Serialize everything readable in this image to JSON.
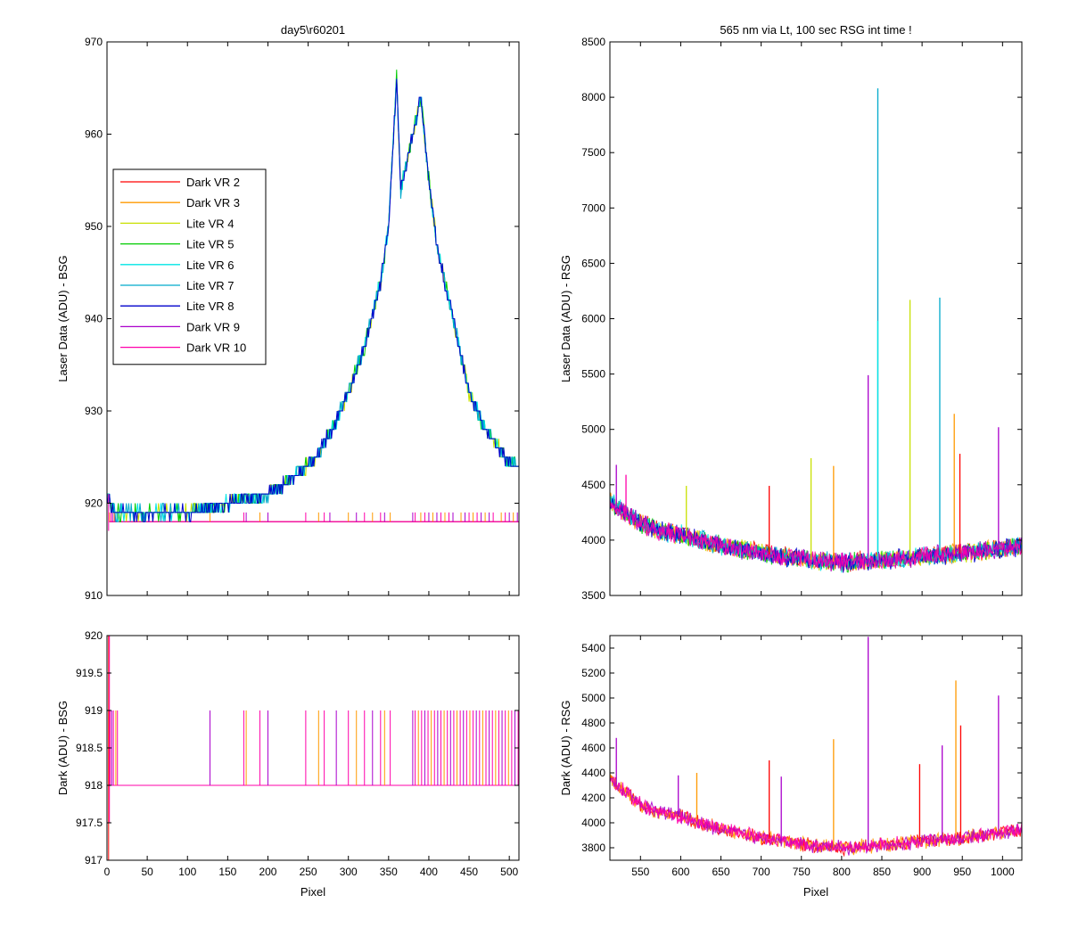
{
  "figure": {
    "background": "#ffffff"
  },
  "chart_data": [
    {
      "id": "top-left",
      "type": "line",
      "title": "day5\\r60201",
      "xlabel": "",
      "ylabel": "Laser Data (ADU) - BSG",
      "xlim": [
        0,
        512
      ],
      "ylim": [
        910,
        970
      ],
      "xticks": [
        0,
        50,
        100,
        150,
        200,
        250,
        300,
        350,
        400,
        450,
        500
      ],
      "xticklabels": [],
      "yticks": [
        910,
        920,
        930,
        940,
        950,
        960,
        970
      ],
      "yticklabels": [
        "910",
        "920",
        "930",
        "940",
        "950",
        "960",
        "970"
      ],
      "grid": false,
      "legend": {
        "position": "left-middle",
        "entries": [
          {
            "name": "Dark VR 2",
            "color": "#ff0000"
          },
          {
            "name": "Dark VR 3",
            "color": "#ff9900"
          },
          {
            "name": "Lite VR 4",
            "color": "#c8e000"
          },
          {
            "name": "Lite VR 5",
            "color": "#00cc00"
          },
          {
            "name": "Lite VR 6",
            "color": "#00e5e5"
          },
          {
            "name": "Lite VR 7",
            "color": "#00aacc"
          },
          {
            "name": "Lite VR 8",
            "color": "#0000cc"
          },
          {
            "name": "Dark VR 9",
            "color": "#aa00cc"
          },
          {
            "name": "Dark VR 10",
            "color": "#ff00aa"
          }
        ]
      },
      "series": [
        {
          "name": "Lite VR 8",
          "color": "#0000cc",
          "kind": "lite",
          "x": [
            0,
            10,
            20,
            50,
            100,
            150,
            180,
            200,
            220,
            240,
            260,
            280,
            300,
            320,
            340,
            350,
            355,
            360,
            365,
            370,
            380,
            385,
            390,
            400,
            410,
            420,
            430,
            440,
            450,
            460,
            470,
            480,
            490,
            500,
            510
          ],
          "y": [
            921,
            919,
            919,
            919,
            919,
            920,
            920.5,
            921,
            922,
            923.5,
            925,
            928,
            932,
            937,
            944,
            950,
            958,
            966,
            954,
            956,
            960,
            962,
            964,
            955,
            948,
            944,
            940,
            936,
            932,
            930,
            928,
            927,
            925.5,
            924.5,
            924
          ]
        },
        {
          "name": "Dark VR 10",
          "color": "#ff00aa",
          "kind": "dark",
          "baseline": 918
        }
      ],
      "dark_spike_pixels": [
        3,
        5,
        7,
        9,
        10,
        13,
        128,
        170,
        173,
        190,
        200,
        247,
        263,
        270,
        277,
        300,
        310,
        320,
        330,
        340,
        345,
        352,
        380,
        383,
        390,
        395,
        400,
        405,
        410,
        415,
        420,
        425,
        430,
        440,
        445,
        450,
        455,
        460,
        465,
        470,
        475,
        480,
        490,
        495,
        500,
        505,
        510
      ]
    },
    {
      "id": "top-right",
      "type": "line",
      "title": "565 nm via Lt, 100 sec RSG int time !",
      "xlabel": "",
      "ylabel": "Laser Data (ADU) - RSG",
      "xlim": [
        512,
        1024
      ],
      "ylim": [
        3500,
        8500
      ],
      "xticks": [
        550,
        600,
        650,
        700,
        750,
        800,
        850,
        900,
        950,
        1000
      ],
      "xticklabels": [],
      "yticks": [
        3500,
        4000,
        4500,
        5000,
        5500,
        6000,
        6500,
        7000,
        7500,
        8000,
        8500
      ],
      "yticklabels": [
        "3500",
        "4000",
        "4500",
        "5000",
        "5500",
        "6000",
        "6500",
        "7000",
        "7500",
        "8000",
        "8500"
      ],
      "grid": false,
      "baseline": {
        "x": [
          512,
          530,
          550,
          575,
          600,
          625,
          650,
          700,
          750,
          800,
          850,
          900,
          950,
          1000,
          1024
        ],
        "y": [
          4350,
          4250,
          4150,
          4080,
          4050,
          4000,
          3950,
          3880,
          3830,
          3800,
          3820,
          3850,
          3880,
          3920,
          3950
        ]
      },
      "spikes": [
        {
          "x": 520,
          "y": 4680,
          "series": "Dark VR 9"
        },
        {
          "x": 532,
          "y": 4590,
          "series": "Dark VR 10"
        },
        {
          "x": 607,
          "y": 4490,
          "series": "Lite VR 4"
        },
        {
          "x": 710,
          "y": 4490,
          "series": "Dark VR 2"
        },
        {
          "x": 762,
          "y": 4740,
          "series": "Lite VR 4"
        },
        {
          "x": 790,
          "y": 4670,
          "series": "Dark VR 3"
        },
        {
          "x": 833,
          "y": 5490,
          "series": "Dark VR 9"
        },
        {
          "x": 845,
          "y": 8080,
          "series": "Lite VR 7"
        },
        {
          "x": 845,
          "y": 5980,
          "series": "Lite VR 6"
        },
        {
          "x": 885,
          "y": 6170,
          "series": "Lite VR 4"
        },
        {
          "x": 922,
          "y": 6190,
          "series": "Lite VR 7"
        },
        {
          "x": 940,
          "y": 5140,
          "series": "Dark VR 3"
        },
        {
          "x": 947,
          "y": 4780,
          "series": "Dark VR 2"
        },
        {
          "x": 995,
          "y": 5020,
          "series": "Dark VR 9"
        }
      ]
    },
    {
      "id": "bottom-left",
      "type": "line",
      "title": "",
      "xlabel": "Pixel",
      "ylabel": "Dark (ADU) - BSG",
      "xlim": [
        0,
        512
      ],
      "ylim": [
        917,
        920
      ],
      "xticks": [
        0,
        50,
        100,
        150,
        200,
        250,
        300,
        350,
        400,
        450,
        500
      ],
      "xticklabels": [
        "0",
        "50",
        "100",
        "150",
        "200",
        "250",
        "300",
        "350",
        "400",
        "450",
        "500"
      ],
      "yticks": [
        917,
        917.5,
        918,
        918.5,
        919,
        919.5,
        920
      ],
      "yticklabels": [
        "917",
        "917.5",
        "918",
        "918.5",
        "919",
        "919.5",
        "920"
      ],
      "grid": false,
      "baseline": 918,
      "spike_top": 919,
      "spike_pixels": [
        2,
        4,
        6,
        8,
        11,
        13,
        128,
        170,
        173,
        190,
        200,
        247,
        263,
        270,
        285,
        300,
        310,
        320,
        330,
        340,
        345,
        352,
        380,
        383,
        387,
        391,
        395,
        399,
        403,
        407,
        411,
        415,
        419,
        423,
        427,
        431,
        435,
        439,
        443,
        447,
        451,
        455,
        459,
        463,
        467,
        471,
        475,
        479,
        483,
        487,
        491,
        495,
        499,
        503,
        507,
        511
      ]
    },
    {
      "id": "bottom-right",
      "type": "line",
      "title": "",
      "xlabel": "Pixel",
      "ylabel": "Dark (ADU) - RSG",
      "xlim": [
        512,
        1024
      ],
      "ylim": [
        3700,
        5500
      ],
      "xticks": [
        550,
        600,
        650,
        700,
        750,
        800,
        850,
        900,
        950,
        1000
      ],
      "xticklabels": [
        "550",
        "600",
        "650",
        "700",
        "750",
        "800",
        "850",
        "900",
        "950",
        "1000"
      ],
      "yticks": [
        3800,
        4000,
        4200,
        4400,
        4600,
        4800,
        5000,
        5200,
        5400
      ],
      "yticklabels": [
        "3800",
        "4000",
        "4200",
        "4400",
        "4600",
        "4800",
        "5000",
        "5200",
        "5400"
      ],
      "grid": false,
      "baseline": {
        "x": [
          512,
          530,
          550,
          575,
          600,
          625,
          650,
          700,
          750,
          800,
          850,
          900,
          950,
          1000,
          1024
        ],
        "y": [
          4350,
          4250,
          4150,
          4080,
          4050,
          4000,
          3950,
          3880,
          3830,
          3800,
          3820,
          3850,
          3880,
          3920,
          3950
        ]
      },
      "spikes": [
        {
          "x": 520,
          "y": 4680,
          "series": "Dark VR 9"
        },
        {
          "x": 597,
          "y": 4380,
          "series": "Dark VR 9"
        },
        {
          "x": 620,
          "y": 4400,
          "series": "Dark VR 3"
        },
        {
          "x": 710,
          "y": 4500,
          "series": "Dark VR 2"
        },
        {
          "x": 725,
          "y": 4370,
          "series": "Dark VR 9"
        },
        {
          "x": 790,
          "y": 4670,
          "series": "Dark VR 3"
        },
        {
          "x": 833,
          "y": 5490,
          "series": "Dark VR 9"
        },
        {
          "x": 897,
          "y": 4470,
          "series": "Dark VR 2"
        },
        {
          "x": 925,
          "y": 4620,
          "series": "Dark VR 9"
        },
        {
          "x": 942,
          "y": 5140,
          "series": "Dark VR 3"
        },
        {
          "x": 948,
          "y": 4780,
          "series": "Dark VR 2"
        },
        {
          "x": 995,
          "y": 5020,
          "series": "Dark VR 9"
        }
      ]
    }
  ]
}
